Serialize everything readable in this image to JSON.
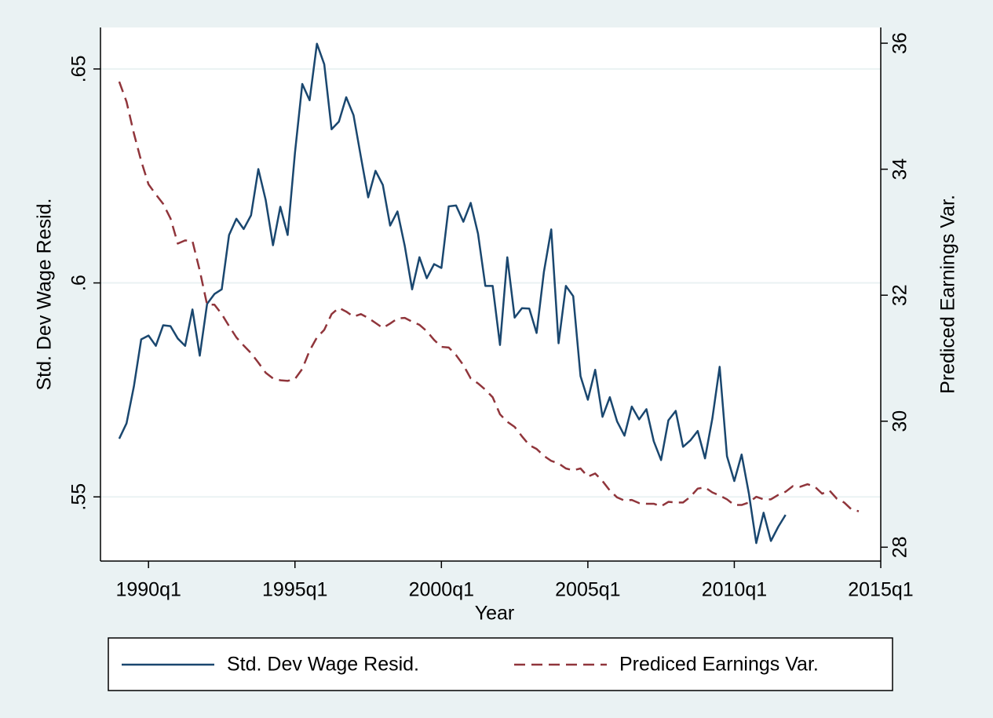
{
  "chart_data": {
    "type": "line",
    "x_label": "Year",
    "y_label": "Std. Dev Wage Resid.",
    "y2_label": "Prediced Earnings Var.",
    "x": [
      1989,
      1989.25,
      1989.5,
      1989.75,
      1990,
      1990.25,
      1990.5,
      1990.75,
      1991,
      1991.25,
      1991.5,
      1991.75,
      1992,
      1992.25,
      1992.5,
      1992.75,
      1993,
      1993.25,
      1993.5,
      1993.75,
      1994,
      1994.25,
      1994.5,
      1994.75,
      1995,
      1995.25,
      1995.5,
      1995.75,
      1996,
      1996.25,
      1996.5,
      1996.75,
      1997,
      1997.25,
      1997.5,
      1997.75,
      1998,
      1998.25,
      1998.5,
      1998.75,
      1999,
      1999.25,
      1999.5,
      1999.75,
      2000,
      2000.25,
      2000.5,
      2000.75,
      2001,
      2001.25,
      2001.5,
      2001.75,
      2002,
      2002.25,
      2002.5,
      2002.75,
      2003,
      2003.25,
      2003.5,
      2003.75,
      2004,
      2004.25,
      2004.5,
      2004.75,
      2005,
      2005.25,
      2005.5,
      2005.75,
      2006,
      2006.25,
      2006.5,
      2006.75,
      2007,
      2007.25,
      2007.5,
      2007.75,
      2008,
      2008.25,
      2008.5,
      2008.75,
      2009,
      2009.25,
      2009.5,
      2009.75,
      2010,
      2010.25,
      2010.5,
      2010.75,
      2011,
      2011.25,
      2011.5,
      2011.75,
      2012,
      2012.25,
      2012.5,
      2012.75,
      2013,
      2013.25,
      2013.5,
      2013.75,
      2014,
      2014.25
    ],
    "xlim": [
      1988.36,
      2015
    ],
    "xticks": [
      {
        "value": 1990,
        "label": "1990q1"
      },
      {
        "value": 1995,
        "label": "1995q1"
      },
      {
        "value": 2000,
        "label": "2000q1"
      },
      {
        "value": 2005,
        "label": "2005q1"
      },
      {
        "value": 2010,
        "label": "2010q1"
      },
      {
        "value": 2015,
        "label": "2015q1"
      }
    ],
    "ylim": [
      0.535,
      0.6597
    ],
    "yticks": [
      {
        "value": 0.55,
        "label": ".55"
      },
      {
        "value": 0.6,
        "label": ".6"
      },
      {
        "value": 0.65,
        "label": ".65"
      }
    ],
    "y2lim": [
      27.78,
      36.25
    ],
    "y2ticks": [
      28,
      30,
      32,
      34,
      36
    ],
    "grid": true,
    "series": [
      {
        "name": "Std. Dev Wage Resid.",
        "color": "#1a476f",
        "dash": false,
        "values": [
          0.5636,
          0.5672,
          0.5758,
          0.5868,
          0.5877,
          0.5853,
          0.5901,
          0.5899,
          0.587,
          0.5853,
          0.5938,
          0.583,
          0.5951,
          0.5974,
          0.5985,
          0.6112,
          0.615,
          0.6126,
          0.6158,
          0.6266,
          0.6194,
          0.6088,
          0.6178,
          0.6112,
          0.6304,
          0.6465,
          0.6427,
          0.6559,
          0.6511,
          0.6359,
          0.6377,
          0.6434,
          0.6392,
          0.6295,
          0.62,
          0.6262,
          0.6229,
          0.6134,
          0.6167,
          0.6086,
          0.5985,
          0.606,
          0.6011,
          0.6044,
          0.6035,
          0.6179,
          0.6181,
          0.6143,
          0.6187,
          0.6115,
          0.5993,
          0.5993,
          0.5855,
          0.606,
          0.5919,
          0.5941,
          0.594,
          0.5883,
          0.6026,
          0.6125,
          0.5859,
          0.5993,
          0.5969,
          0.5782,
          0.5727,
          0.5797,
          0.5687,
          0.5733,
          0.5676,
          0.5643,
          0.5711,
          0.5681,
          0.5705,
          0.563,
          0.5586,
          0.5679,
          0.5701,
          0.5617,
          0.5632,
          0.5654,
          0.559,
          0.5683,
          0.5804,
          0.5595,
          0.5537,
          0.5599,
          0.5507,
          0.5392,
          0.5463,
          0.5397,
          0.543,
          0.5458,
          null,
          null,
          null,
          null,
          null,
          null,
          null,
          null,
          null,
          null
        ]
      },
      {
        "name": "Prediced Earnings Var.",
        "color": "#90353b",
        "dash": true,
        "axis": "y2",
        "values": [
          35.39,
          35.07,
          34.57,
          34.13,
          33.76,
          33.6,
          33.45,
          33.22,
          32.82,
          32.87,
          32.86,
          32.39,
          31.85,
          31.85,
          31.7,
          31.51,
          31.33,
          31.2,
          31.08,
          30.93,
          30.77,
          30.68,
          30.65,
          30.64,
          30.67,
          30.83,
          31.12,
          31.33,
          31.45,
          31.7,
          31.8,
          31.74,
          31.66,
          31.7,
          31.64,
          31.56,
          31.48,
          31.55,
          31.63,
          31.64,
          31.58,
          31.53,
          31.43,
          31.29,
          31.18,
          31.17,
          31.05,
          30.89,
          30.68,
          30.6,
          30.5,
          30.38,
          30.11,
          29.99,
          29.91,
          29.76,
          29.62,
          29.56,
          29.45,
          29.37,
          29.33,
          29.25,
          29.22,
          29.25,
          29.12,
          29.17,
          29.05,
          28.9,
          28.79,
          28.74,
          28.75,
          28.7,
          28.69,
          28.69,
          28.65,
          28.72,
          28.71,
          28.71,
          28.8,
          28.93,
          28.95,
          28.87,
          28.82,
          28.76,
          28.67,
          28.67,
          28.71,
          28.8,
          28.76,
          28.76,
          28.83,
          28.88,
          28.97,
          28.96,
          29.0,
          28.96,
          28.85,
          28.9,
          28.77,
          28.71,
          28.6,
          28.57
        ]
      }
    ]
  }
}
